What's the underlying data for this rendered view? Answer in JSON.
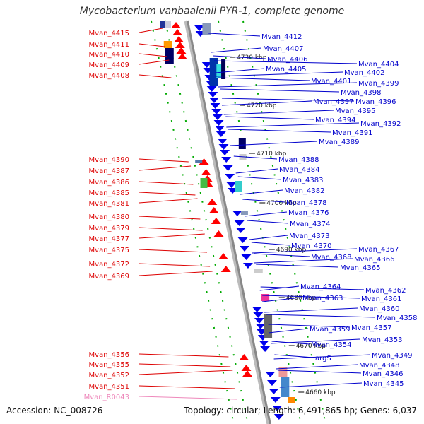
{
  "title": "Mycobacterium vanbaalenii PYR-1, complete genome",
  "footer": {
    "accession": "Accession: NC_008726",
    "topology": "Topology: circular; Length: 6,491,865 bp; Genes: 6,037"
  },
  "colors": {
    "minus_label": "#dd0000",
    "plus_label": "#0000cc",
    "rna_label": "#ee88bb",
    "minus_gene": "#ff0000",
    "plus_gene": "#0000ee",
    "backbone": "#888888",
    "rail": "#00aa00"
  },
  "scale_labels": [
    "4730 kbp",
    "4720 kbp",
    "4710 kbp",
    "4700 kbp",
    "4690 kbp",
    "4680 kbp",
    "4670 kbp",
    "4660 kbp"
  ],
  "left_labels": [
    {
      "text": "Mvan_4415",
      "kind": "gene"
    },
    {
      "text": "Mvan_4411",
      "kind": "gene"
    },
    {
      "text": "Mvan_4410",
      "kind": "gene"
    },
    {
      "text": "Mvan_4409",
      "kind": "gene"
    },
    {
      "text": "Mvan_4408",
      "kind": "gene"
    },
    {
      "text": "Mvan_4390",
      "kind": "gene"
    },
    {
      "text": "Mvan_4387",
      "kind": "gene"
    },
    {
      "text": "Mvan_4386",
      "kind": "gene"
    },
    {
      "text": "Mvan_4385",
      "kind": "gene"
    },
    {
      "text": "Mvan_4381",
      "kind": "gene"
    },
    {
      "text": "Mvan_4380",
      "kind": "gene"
    },
    {
      "text": "Mvan_4379",
      "kind": "gene"
    },
    {
      "text": "Mvan_4377",
      "kind": "gene"
    },
    {
      "text": "Mvan_4375",
      "kind": "gene"
    },
    {
      "text": "Mvan_4372",
      "kind": "gene"
    },
    {
      "text": "Mvan_4369",
      "kind": "gene"
    },
    {
      "text": "Mvan_4356",
      "kind": "gene"
    },
    {
      "text": "Mvan_4355",
      "kind": "gene"
    },
    {
      "text": "Mvan_4352",
      "kind": "gene"
    },
    {
      "text": "Mvan_4351",
      "kind": "gene"
    },
    {
      "text": "Mvan_R0043",
      "kind": "rna"
    }
  ],
  "right_labels": [
    {
      "text": "Mvan_4412"
    },
    {
      "text": "Mvan_4407"
    },
    {
      "text": "Mvan_4406"
    },
    {
      "text": "Mvan_4405"
    },
    {
      "text": "Mvan_4404"
    },
    {
      "text": "Mvan_4402"
    },
    {
      "text": "Mvan_4401"
    },
    {
      "text": "Mvan_4399"
    },
    {
      "text": "Mvan_4398"
    },
    {
      "text": "Mvan_4397"
    },
    {
      "text": "Mvan_4396"
    },
    {
      "text": "Mvan_4395"
    },
    {
      "text": "Mvan_4394"
    },
    {
      "text": "Mvan_4392"
    },
    {
      "text": "Mvan_4391"
    },
    {
      "text": "Mvan_4389"
    },
    {
      "text": "Mvan_4388"
    },
    {
      "text": "Mvan_4384"
    },
    {
      "text": "Mvan_4383"
    },
    {
      "text": "Mvan_4382"
    },
    {
      "text": "Mvan_4378"
    },
    {
      "text": "Mvan_4376"
    },
    {
      "text": "Mvan_4374"
    },
    {
      "text": "Mvan_4373"
    },
    {
      "text": "Mvan_4370"
    },
    {
      "text": "Mvan_4367"
    },
    {
      "text": "Mvan_4368"
    },
    {
      "text": "Mvan_4366"
    },
    {
      "text": "Mvan_4365"
    },
    {
      "text": "Mvan_4364"
    },
    {
      "text": "Mvan_4362"
    },
    {
      "text": "Mvan_4363"
    },
    {
      "text": "Mvan_4361"
    },
    {
      "text": "Mvan_4360"
    },
    {
      "text": "Mvan_4358"
    },
    {
      "text": "Mvan_4359"
    },
    {
      "text": "Mvan_4357"
    },
    {
      "text": "Mvan_4353"
    },
    {
      "text": "Mvan_4354"
    },
    {
      "text": "Mvan_4349"
    },
    {
      "text": "argS"
    },
    {
      "text": "Mvan_4348"
    },
    {
      "text": "Mvan_4346"
    },
    {
      "text": "Mvan_4345"
    }
  ]
}
